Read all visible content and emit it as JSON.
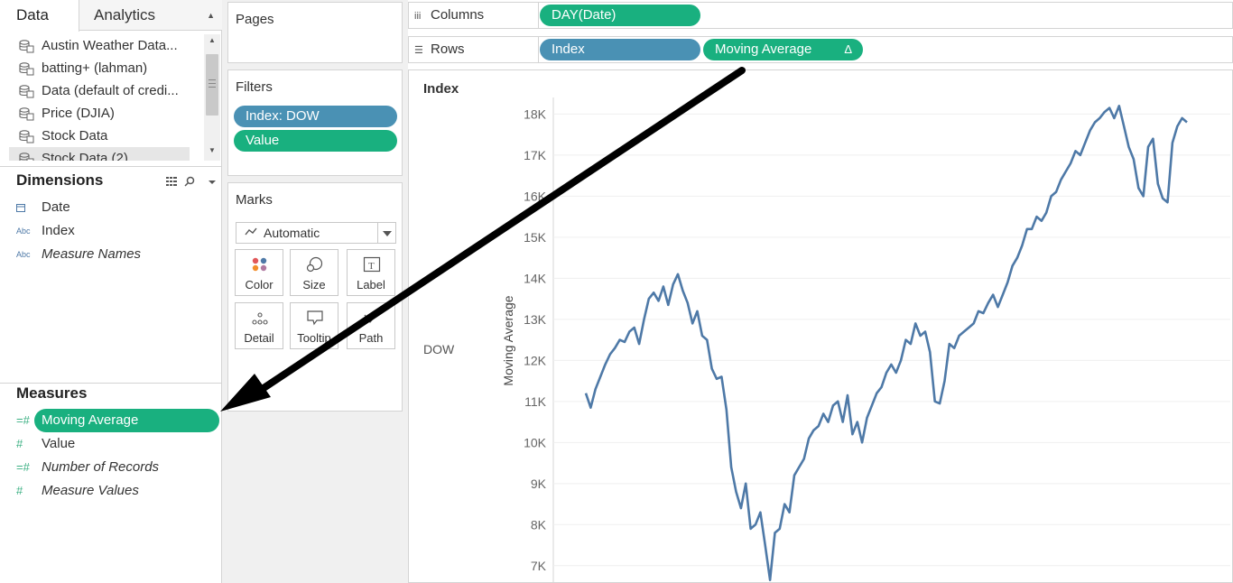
{
  "tabs": {
    "data_label": "Data",
    "analytics_label": "Analytics"
  },
  "datasources": [
    {
      "label": "Austin Weather Data..."
    },
    {
      "label": "batting+ (lahman)"
    },
    {
      "label": "Data (default of credi..."
    },
    {
      "label": "Price (DJIA)"
    },
    {
      "label": "Stock Data"
    },
    {
      "label": "Stock Data (2)",
      "selected": true
    }
  ],
  "dimensions": {
    "title": "Dimensions",
    "fields": [
      {
        "label": "Date",
        "icon": "calendar-icon"
      },
      {
        "label": "Index",
        "icon": "Abc"
      },
      {
        "label": "Measure Names",
        "icon": "Abc",
        "italic": true
      }
    ]
  },
  "measures": {
    "title": "Measures",
    "fields": [
      {
        "label": "Moving Average",
        "icon": "calc-measure-icon",
        "selected": true
      },
      {
        "label": "Value",
        "icon": "#"
      },
      {
        "label": "Number of Records",
        "icon": "calc-measure-icon",
        "italic": true
      },
      {
        "label": "Measure Values",
        "icon": "#",
        "italic": true
      }
    ]
  },
  "pages": {
    "title": "Pages"
  },
  "filters": {
    "title": "Filters",
    "pills": [
      {
        "label": "Index: DOW",
        "color": "#4a91b4"
      },
      {
        "label": "Value",
        "color": "#19b07f"
      }
    ]
  },
  "marks": {
    "title": "Marks",
    "type": "Automatic",
    "buttons": [
      "Color",
      "Size",
      "Label",
      "Detail",
      "Tooltip",
      "Path"
    ]
  },
  "columns": {
    "label": "Columns",
    "pills": [
      {
        "label": "DAY(Date)",
        "color": "#19b07f"
      }
    ]
  },
  "rows": {
    "label": "Rows",
    "pills": [
      {
        "label": "Index",
        "color": "#4a91b4"
      },
      {
        "label": "Moving Average",
        "color": "#19b07f",
        "delta": "Δ"
      }
    ]
  },
  "viz": {
    "header": "Index",
    "row_value": "DOW"
  },
  "chart_data": {
    "type": "line",
    "title": "",
    "xlabel": "",
    "ylabel": "Moving Average",
    "ylim": [
      6600,
      18800
    ],
    "y_ticks": [
      "7K",
      "8K",
      "9K",
      "10K",
      "11K",
      "12K",
      "13K",
      "14K",
      "15K",
      "16K",
      "17K",
      "18K"
    ],
    "y_tick_values": [
      7000,
      8000,
      9000,
      10000,
      11000,
      12000,
      13000,
      14000,
      15000,
      16000,
      17000,
      18000
    ],
    "line_color": "#4e79a7",
    "series": [
      {
        "values": [
          11200,
          10850,
          11300,
          11600,
          11900,
          12150,
          12300,
          12500,
          12450,
          12700,
          12800,
          12400,
          13000,
          13500,
          13650,
          13450,
          13800,
          13350,
          13850,
          14100,
          13700,
          13400,
          12900,
          13200,
          12600,
          12500,
          11800,
          11550,
          11600,
          10800,
          9400,
          8800,
          8400,
          9000,
          7900,
          8000,
          8300,
          7500,
          6650,
          7800,
          7900,
          8500,
          8300,
          9200,
          9400,
          9600,
          10100,
          10300,
          10400,
          10700,
          10500,
          10900,
          11000,
          10500,
          11150,
          10200,
          10500,
          10000,
          10600,
          10900,
          11200,
          11350,
          11700,
          11900,
          11700,
          12000,
          12500,
          12400,
          12900,
          12600,
          12700,
          12200,
          11000,
          10950,
          11500,
          12400,
          12300,
          12600,
          12700,
          12800,
          12900,
          13200,
          13150,
          13400,
          13600,
          13300,
          13600,
          13900,
          14300,
          14500,
          14800,
          15200,
          15200,
          15500,
          15400,
          15600,
          16000,
          16100,
          16400,
          16600,
          16800,
          17100,
          17000,
          17300,
          17600,
          17800,
          17900,
          18050,
          18150,
          17900,
          18200,
          17700,
          17200,
          16900,
          16200,
          16000,
          17200,
          17400,
          16300,
          15950,
          15850,
          17300,
          17700,
          17900,
          17800
        ]
      }
    ],
    "grid": true
  }
}
